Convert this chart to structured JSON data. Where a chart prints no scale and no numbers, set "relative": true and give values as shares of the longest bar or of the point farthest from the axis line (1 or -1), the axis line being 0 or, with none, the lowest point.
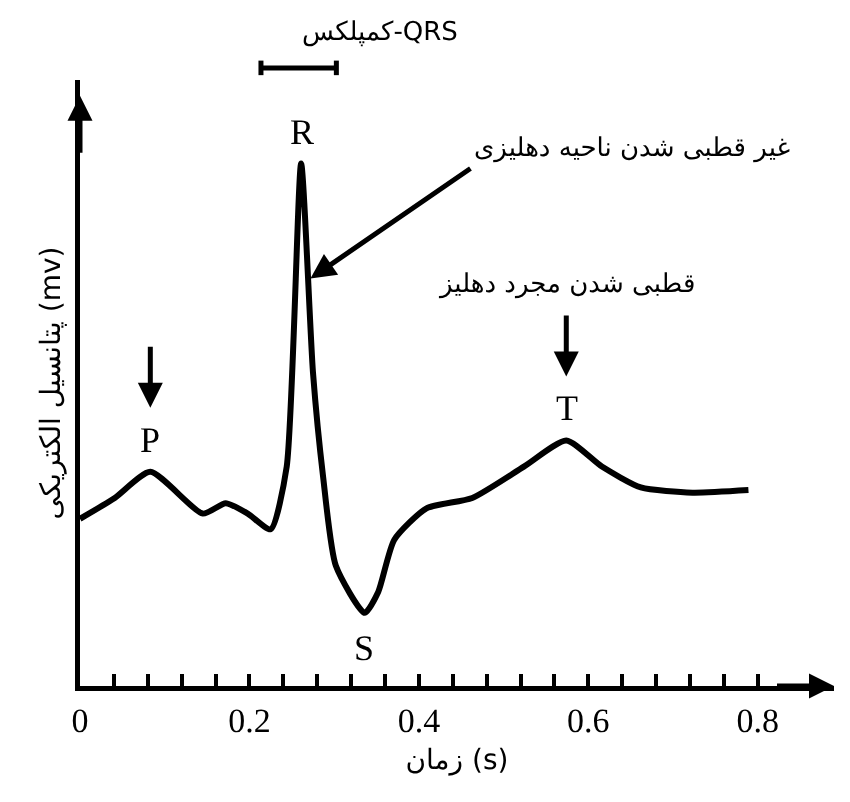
{
  "chart_data": {
    "type": "line",
    "relative": true,
    "xlabel": "زمان (s)",
    "ylabel": "پتانسیل الکتریکی (mv)",
    "x": [
      0,
      0.041,
      0.083,
      0.145,
      0.172,
      0.198,
      0.225,
      0.244,
      0.261,
      0.275,
      0.287,
      0.302,
      0.336,
      0.352,
      0.371,
      0.409,
      0.463,
      0.524,
      0.574,
      0.616,
      0.662,
      0.723,
      0.789
    ],
    "series": [
      {
        "color": "#000000",
        "values": [
          0.32,
          0.36,
          0.41,
          0.33,
          0.35,
          0.33,
          0.3,
          0.42,
          1,
          0.6,
          0.4,
          0.23,
          0.14,
          0.18,
          0.28,
          0.34,
          0.36,
          0.42,
          0.47,
          0.42,
          0.38,
          0.37,
          0.375
        ]
      }
    ],
    "xlim": [
      0,
      0.89
    ],
    "xticks": [
      0,
      {
        "value": 0.04,
        "label": null
      },
      {
        "value": 0.08,
        "label": null
      },
      {
        "value": 0.12,
        "label": null
      },
      {
        "value": 0.16,
        "label": null
      },
      0.2,
      {
        "value": 0.24,
        "label": null
      },
      {
        "value": 0.28,
        "label": null
      },
      {
        "value": 0.32,
        "label": null
      },
      {
        "value": 0.36,
        "label": null
      },
      0.4,
      {
        "value": 0.44,
        "label": null
      },
      {
        "value": 0.48,
        "label": null
      },
      {
        "value": 0.52,
        "label": null
      },
      {
        "value": 0.56,
        "label": null
      },
      0.6,
      {
        "value": 0.64,
        "label": null
      },
      {
        "value": 0.68,
        "label": null
      },
      {
        "value": 0.72,
        "label": null
      },
      {
        "value": 0.76,
        "label": null
      },
      0.8
    ],
    "annotations": [
      {
        "text": "R",
        "x": 0.261,
        "y": 1
      },
      {
        "text": "P",
        "x": 0.083,
        "y": 0.41
      },
      {
        "text": "S",
        "x": 0.336,
        "y": 0.14
      },
      {
        "text": "T",
        "x": 0.574,
        "y": 0.47
      },
      {
        "text": "غیر قطبی شدن ناحیه دهلیزی",
        "x": 0.272,
        "y": 0.78
      },
      "کمپلکس-QRS",
      "قطبی شدن مجرد دهلیز"
    ],
    "grid": false,
    "marker": "none",
    "line_style": "solid",
    "tick_labels": "x"
  }
}
